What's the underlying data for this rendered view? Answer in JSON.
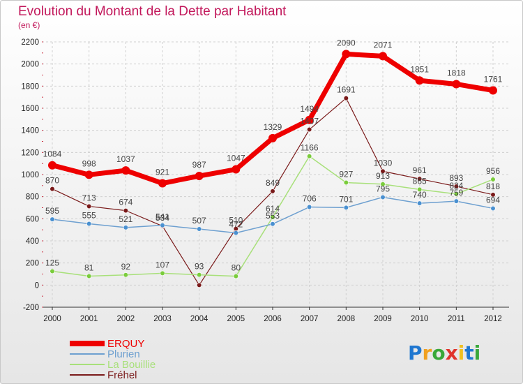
{
  "title": "Evolution du Montant de la Dette par Habitant",
  "subtitle": "(en €)",
  "logo": {
    "letters": [
      "P",
      "r",
      "o",
      "x",
      "i",
      "t",
      "i"
    ],
    "colors": [
      "#1f77d0",
      "#f0a020",
      "#39a839",
      "#e0342b",
      "#f0c020",
      "#1f77d0",
      "#39a839"
    ]
  },
  "chart_data": {
    "type": "line",
    "categories": [
      "2000",
      "2001",
      "2002",
      "2003",
      "2004",
      "2005",
      "2006",
      "2007",
      "2008",
      "2009",
      "2010",
      "2011",
      "2012"
    ],
    "ylim": [
      -200,
      2200
    ],
    "yticks": [
      -200,
      0,
      200,
      400,
      600,
      800,
      1000,
      1200,
      1400,
      1600,
      1800,
      2000,
      2200
    ],
    "grid": true,
    "legend_position": "bottom-left",
    "series": [
      {
        "name": "Fréhel",
        "color": "#7a1a1a",
        "marker": "#7a1a1a",
        "width": 1.2,
        "values": [
          870,
          713,
          674,
          534,
          0,
          510,
          849,
          1407,
          1691,
          1030,
          961,
          893,
          818
        ],
        "labels": [
          "870",
          "713",
          "674",
          "534",
          "",
          "510",
          "849",
          "1407",
          "1691",
          "1030",
          "961",
          "893",
          "818"
        ]
      },
      {
        "name": "La Bouillie",
        "color": "#a8e07a",
        "marker": "#7acc3c",
        "width": 1.5,
        "values": [
          125,
          81,
          92,
          107,
          93,
          80,
          614,
          1166,
          927,
          913,
          865,
          824,
          956
        ],
        "labels": [
          "125",
          "81",
          "92",
          "107",
          "93",
          "80",
          "614",
          "1166",
          "927",
          "913",
          "865",
          "824",
          "956"
        ]
      },
      {
        "name": "Plurien",
        "color": "#6ea0d0",
        "marker": "#4a90d0",
        "width": 1.5,
        "values": [
          595,
          555,
          521,
          541,
          507,
          472,
          553,
          706,
          701,
          795,
          740,
          759,
          694
        ],
        "labels": [
          "595",
          "555",
          "521",
          "541",
          "507",
          "472",
          "553",
          "706",
          "701",
          "795",
          "740",
          "759",
          "694"
        ]
      },
      {
        "name": "ERQUY",
        "color": "#ee0000",
        "marker": "#ee0000",
        "width": 7,
        "values": [
          1084,
          998,
          1037,
          921,
          987,
          1047,
          1329,
          1494,
          2090,
          2071,
          1851,
          1818,
          1761
        ],
        "labels": [
          "1084",
          "998",
          "1037",
          "921",
          "987",
          "1047",
          "1329",
          "1494",
          "2090",
          "2071",
          "1851",
          "1818",
          "1761"
        ]
      }
    ],
    "legend_order": [
      "ERQUY",
      "Plurien",
      "La Bouillie",
      "Fréhel"
    ]
  }
}
